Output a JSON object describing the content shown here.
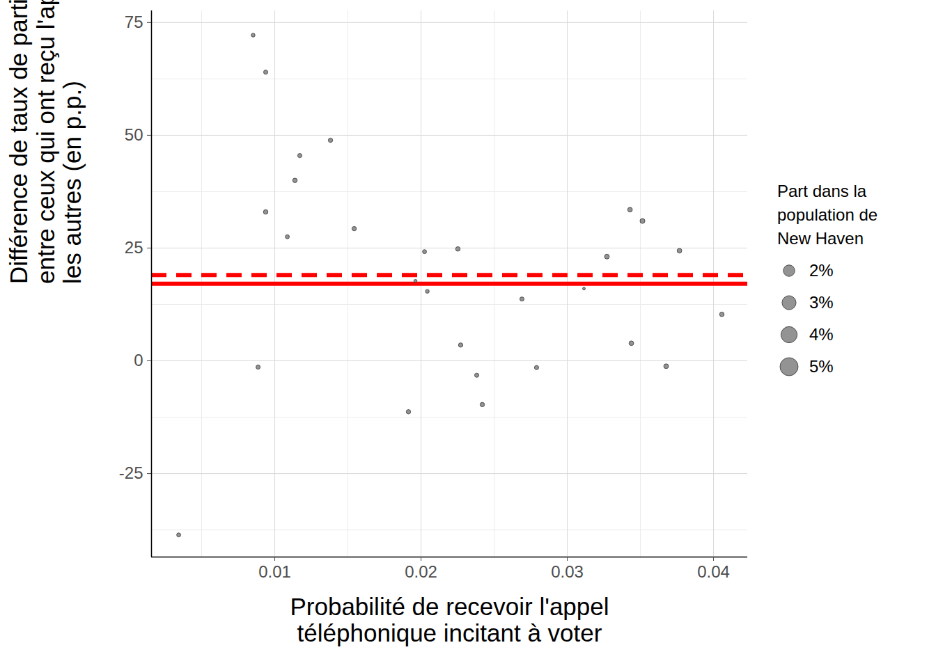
{
  "chart_data": {
    "type": "scatter",
    "x_label": "Probabilité de recevoir l'appel\ntéléphonique incitant à voter",
    "y_label": "Différence de taux de participation\nentre ceux qui ont reçu l'appel et\nles autres (en p.p.)",
    "x": [
      0.00343,
      0.00852,
      0.00938,
      0.01381,
      0.01171,
      0.01138,
      0.00938,
      0.01086,
      0.01543,
      0.00886,
      0.02024,
      0.01962,
      0.02043,
      0.02252,
      0.01914,
      0.02271,
      0.02381,
      0.02419,
      0.0269,
      0.0279,
      0.03114,
      0.03271,
      0.03429,
      0.03514,
      0.03767,
      0.03438,
      0.03676,
      0.04057
    ],
    "values": [
      -38.6,
      72.2,
      64.0,
      48.9,
      45.5,
      40.0,
      33.0,
      27.5,
      29.3,
      -1.4,
      24.2,
      17.7,
      15.4,
      24.8,
      -11.3,
      3.5,
      -3.2,
      -9.7,
      13.7,
      -1.5,
      16.0,
      23.1,
      33.5,
      31.0,
      24.4,
      3.9,
      -1.2,
      10.3
    ],
    "sizes": [
      2.5,
      2.0,
      3.0,
      3.5,
      3.0,
      4.0,
      4.0,
      2.5,
      3.5,
      3.0,
      2.5,
      1.0,
      2.0,
      4.0,
      3.5,
      3.5,
      3.0,
      3.5,
      3.0,
      3.0,
      0.5,
      5.0,
      4.5,
      5.5,
      4.5,
      4.5,
      5.0,
      4.0
    ],
    "color": "#808080",
    "hlines": [
      {
        "value": 17.1,
        "color": "#ff0000",
        "line_style": "solid"
      },
      {
        "value": 19.0,
        "color": "#ff0000",
        "line_style": "dashed"
      }
    ],
    "size_legend": {
      "title": "Part dans la\npopulation de\nNew Haven",
      "values": [
        2,
        3,
        4,
        5
      ],
      "labels": [
        "2%",
        "3%",
        "4%",
        "5%"
      ]
    },
    "xlim": [
      0.00157,
      0.04233
    ],
    "ylim": [
      -43.5,
      77.6
    ],
    "xticks": [
      0.01,
      0.02,
      0.03,
      0.04
    ],
    "yticks": [
      -25,
      0,
      25,
      50,
      75
    ],
    "grid": true
  }
}
